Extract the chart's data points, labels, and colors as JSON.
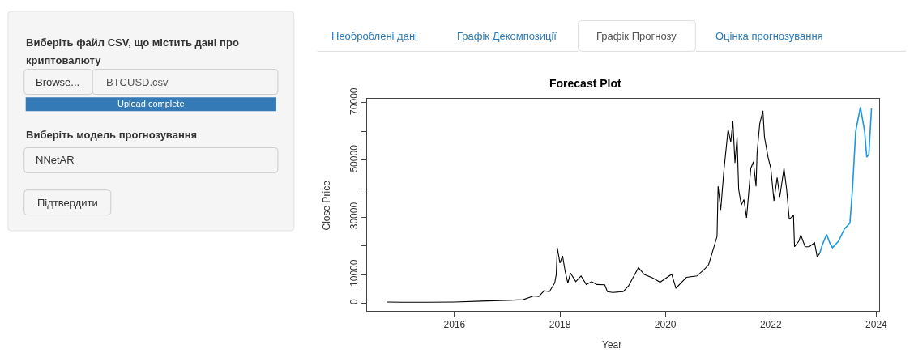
{
  "chart_data": [
    {
      "type": "other",
      "annotations": [
        "Виберіть файл CSV, що містить дані про",
        "криптовалюту",
        "Browse...",
        "BTCUSD.csv",
        "Upload complete",
        "Виберіть модель прогнозування",
        "NNetAR",
        "Підтвердити",
        "Необроблені дані",
        "Графік Декомпозиції",
        "Графік Прогнозу",
        "Оцінка прогнозування"
      ]
    },
    {
      "type": "line",
      "title": "Forecast Plot",
      "xlabel": "Year",
      "ylabel": "Close Price",
      "xlim": [
        2014.34,
        2024.06
      ],
      "ylim": [
        -2650,
        71300
      ],
      "xticks": [
        2016,
        2018,
        2020,
        2022,
        2024
      ],
      "yticks": [
        0,
        10000,
        {
          "value": 20000,
          "label": null
        },
        30000,
        {
          "value": 40000,
          "label": null
        },
        50000,
        {
          "value": 60000,
          "label": null
        },
        70000
      ],
      "line_style": "solid",
      "marker": "none",
      "series": [
        {
          "color": "#000000",
          "x": [
            2014.71,
            2015.0,
            2015.5,
            2016.0,
            2016.5,
            2017.0,
            2017.3,
            2017.5,
            2017.6,
            2017.7,
            2017.8,
            2017.9,
            2017.93,
            2017.95,
            2018.0,
            2018.05,
            2018.1,
            2018.15,
            2018.2,
            2018.3,
            2018.4,
            2018.5,
            2018.6,
            2018.7,
            2018.85,
            2018.9,
            2019.0,
            2019.2,
            2019.3,
            2019.49,
            2019.6,
            2019.76,
            2019.9,
            2020.12,
            2020.2,
            2020.4,
            2020.6,
            2020.75,
            2020.82,
            2020.9,
            2020.98,
            2021.0,
            2021.05,
            2021.11,
            2021.19,
            2021.24,
            2021.28,
            2021.32,
            2021.36,
            2021.39,
            2021.44,
            2021.49,
            2021.54,
            2021.62,
            2021.67,
            2021.72,
            2021.74,
            2021.79,
            2021.85,
            2021.88,
            2021.95,
            2022.0,
            2022.06,
            2022.12,
            2022.17,
            2022.25,
            2022.3,
            2022.35,
            2022.43,
            2022.45,
            2022.53,
            2022.57,
            2022.65,
            2022.73,
            2022.83,
            2022.88,
            2022.93
          ],
          "values": [
            400,
            300,
            300,
            400,
            700,
            1000,
            1200,
            2500,
            2300,
            4300,
            4000,
            7000,
            10000,
            19300,
            14000,
            16500,
            11000,
            7000,
            10500,
            7500,
            9500,
            6500,
            7500,
            6500,
            6400,
            4000,
            3700,
            4000,
            6000,
            12400,
            10000,
            8800,
            7300,
            10100,
            5200,
            9000,
            9500,
            12000,
            13400,
            18300,
            23300,
            40800,
            32600,
            46300,
            60800,
            56200,
            63600,
            49000,
            58000,
            39800,
            34300,
            36200,
            29800,
            47100,
            49400,
            40800,
            52600,
            62700,
            67200,
            58000,
            50800,
            47100,
            35700,
            43900,
            37100,
            47100,
            39800,
            29300,
            30700,
            19700,
            21600,
            23800,
            19700,
            19700,
            21100,
            16100,
            17500
          ]
        },
        {
          "color": "#1b98e0",
          "x": [
            2022.93,
            2022.98,
            2023.06,
            2023.12,
            2023.17,
            2023.28,
            2023.4,
            2023.5,
            2023.55,
            2023.61,
            2023.7,
            2023.78,
            2023.82,
            2023.86,
            2023.91
          ],
          "values": [
            17500,
            20500,
            24000,
            21000,
            19400,
            21500,
            26000,
            27900,
            40000,
            60000,
            68500,
            60000,
            51000,
            52000,
            68000
          ]
        }
      ]
    }
  ]
}
